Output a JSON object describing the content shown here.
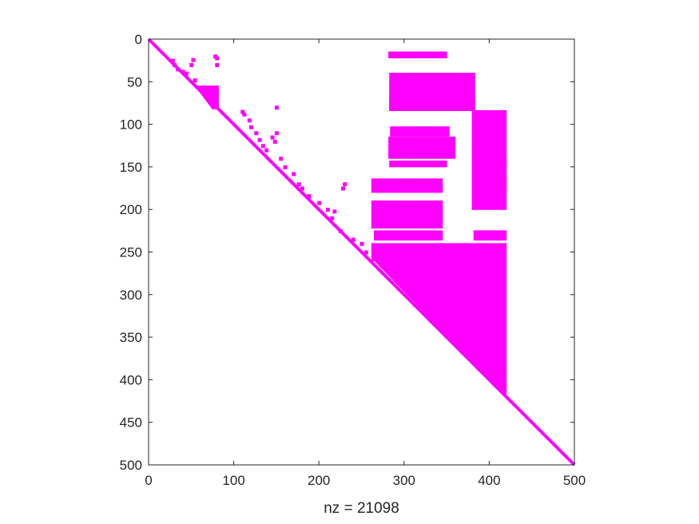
{
  "chart_data": {
    "type": "spy",
    "xlabel": "nz = 21098",
    "ylabel": "",
    "title": "",
    "xlim": [
      0,
      500
    ],
    "ylim": [
      0,
      500
    ],
    "y_reversed": true,
    "grid": false,
    "marker_color": "#ff00ff",
    "xticks": [
      0,
      100,
      200,
      300,
      400,
      500
    ],
    "yticks": [
      0,
      50,
      100,
      150,
      200,
      250,
      300,
      350,
      400,
      450,
      500
    ],
    "filled_regions": [
      {
        "name": "diagonal",
        "points": [
          [
            0,
            0
          ],
          [
            500,
            500
          ]
        ]
      },
      {
        "name": "lower-triangle-block",
        "points": [
          [
            265,
            260
          ],
          [
            420,
            260
          ],
          [
            420,
            420
          ]
        ]
      },
      {
        "name": "dense-band-1",
        "points": [
          [
            282,
            15
          ],
          [
            350,
            15
          ],
          [
            350,
            22
          ],
          [
            282,
            22
          ]
        ]
      },
      {
        "name": "dense-band-2",
        "points": [
          [
            283,
            70
          ],
          [
            383,
            70
          ],
          [
            383,
            84
          ],
          [
            283,
            84
          ]
        ]
      },
      {
        "name": "dense-band-3",
        "points": [
          [
            284,
            103
          ],
          [
            353,
            103
          ],
          [
            353,
            114
          ],
          [
            284,
            114
          ]
        ]
      },
      {
        "name": "dense-band-4",
        "points": [
          [
            283,
            143
          ],
          [
            350,
            143
          ],
          [
            350,
            150
          ],
          [
            283,
            150
          ]
        ]
      },
      {
        "name": "dense-band-5",
        "points": [
          [
            262,
            164
          ],
          [
            345,
            164
          ],
          [
            345,
            180
          ],
          [
            262,
            180
          ]
        ]
      },
      {
        "name": "dense-band-6",
        "points": [
          [
            265,
            225
          ],
          [
            345,
            225
          ],
          [
            345,
            236
          ],
          [
            265,
            236
          ]
        ]
      },
      {
        "name": "dense-band-7",
        "points": [
          [
            390,
            140
          ],
          [
            420,
            140
          ],
          [
            420,
            152
          ],
          [
            390,
            152
          ]
        ]
      },
      {
        "name": "dense-band-8",
        "points": [
          [
            385,
            163
          ],
          [
            420,
            163
          ],
          [
            420,
            180
          ],
          [
            385,
            180
          ]
        ]
      },
      {
        "name": "dense-band-9",
        "points": [
          [
            382,
            225
          ],
          [
            420,
            225
          ],
          [
            420,
            236
          ],
          [
            382,
            236
          ]
        ]
      },
      {
        "name": "column-block-1",
        "points": [
          [
            283,
            40
          ],
          [
            383,
            40
          ],
          [
            383,
            84
          ],
          [
            283,
            84
          ]
        ]
      },
      {
        "name": "upper-left-cluster",
        "points": [
          [
            55,
            55
          ],
          [
            82,
            55
          ],
          [
            82,
            82
          ],
          [
            75,
            82
          ]
        ]
      },
      {
        "name": "column-block-2",
        "points": [
          [
            380,
            84
          ],
          [
            420,
            84
          ],
          [
            420,
            200
          ],
          [
            380,
            200
          ]
        ]
      },
      {
        "name": "upper-band-2",
        "points": [
          [
            262,
            240
          ],
          [
            420,
            240
          ],
          [
            420,
            260
          ],
          [
            262,
            260
          ]
        ]
      },
      {
        "name": "upper-band-3",
        "points": [
          [
            262,
            190
          ],
          [
            345,
            190
          ],
          [
            345,
            222
          ],
          [
            262,
            222
          ]
        ]
      },
      {
        "name": "upper-band-4",
        "points": [
          [
            282,
            115
          ],
          [
            360,
            115
          ],
          [
            360,
            140
          ],
          [
            282,
            140
          ]
        ]
      }
    ],
    "scatter_points": [
      [
        28,
        25
      ],
      [
        30,
        30
      ],
      [
        34,
        35
      ],
      [
        40,
        38
      ],
      [
        44,
        40
      ],
      [
        50,
        30
      ],
      [
        52,
        24
      ],
      [
        54,
        48
      ],
      [
        78,
        20
      ],
      [
        80,
        22
      ],
      [
        80,
        30
      ],
      [
        110,
        85
      ],
      [
        112,
        88
      ],
      [
        118,
        95
      ],
      [
        120,
        103
      ],
      [
        126,
        110
      ],
      [
        130,
        118
      ],
      [
        134,
        125
      ],
      [
        138,
        130
      ],
      [
        145,
        115
      ],
      [
        148,
        120
      ],
      [
        150,
        110
      ],
      [
        150,
        80
      ],
      [
        155,
        140
      ],
      [
        160,
        150
      ],
      [
        170,
        158
      ],
      [
        176,
        170
      ],
      [
        180,
        175
      ],
      [
        188,
        184
      ],
      [
        200,
        192
      ],
      [
        210,
        200
      ],
      [
        215,
        210
      ],
      [
        218,
        202
      ],
      [
        225,
        225
      ],
      [
        228,
        175
      ],
      [
        230,
        170
      ],
      [
        240,
        235
      ],
      [
        250,
        240
      ],
      [
        255,
        250
      ]
    ]
  }
}
